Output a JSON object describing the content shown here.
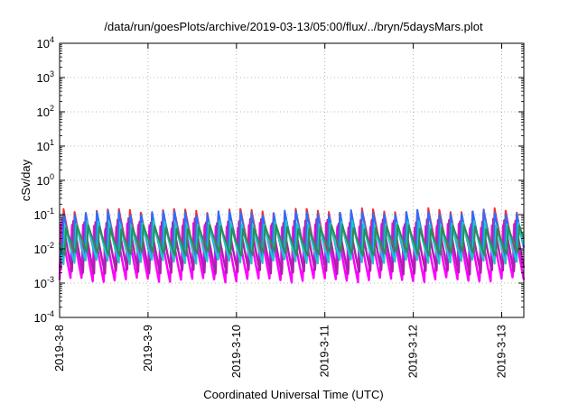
{
  "chart_data": {
    "type": "line",
    "title": "/data/run/goesPlots/archive/2019-03-13/05:00/flux/../bryn/5daysMars.plot",
    "xlabel": "Coordinated Universal Time (UTC)",
    "ylabel": "cSv/day",
    "yscale": "log",
    "ylim": [
      0.0001,
      10000
    ],
    "xlim": [
      "2019-03-08T00:00",
      "2019-03-13T06:00"
    ],
    "x_tick_labels": [
      "2019-3-8",
      "2019-3-9",
      "2019-3-10",
      "2019-3-11",
      "2019-3-12",
      "2019-3-13"
    ],
    "x_ticks": [
      "2019-03-08T00:00",
      "2019-03-09T00:00",
      "2019-03-10T00:00",
      "2019-03-11T00:00",
      "2019-03-12T00:00",
      "2019-03-13T00:00"
    ],
    "y_ticks": [
      {
        "value": 0.0001,
        "base": "10",
        "exp": "-4"
      },
      {
        "value": 0.001,
        "base": "10",
        "exp": "-3"
      },
      {
        "value": 0.01,
        "base": "10",
        "exp": "-2"
      },
      {
        "value": 0.1,
        "base": "10",
        "exp": "-1"
      },
      {
        "value": 1,
        "base": "10",
        "exp": "0"
      },
      {
        "value": 10,
        "base": "10",
        "exp": "1"
      },
      {
        "value": 100,
        "base": "10",
        "exp": "2"
      },
      {
        "value": 1000,
        "base": "10",
        "exp": "3"
      },
      {
        "value": 10000,
        "base": "10",
        "exp": "4"
      }
    ],
    "grid": true,
    "legend": "none",
    "cycle_hours": 3.0,
    "series": [
      {
        "color": "#ff00ff",
        "phase_hours": 0.0,
        "peak": 0.05,
        "trough": 0.0012
      },
      {
        "color": "#b01eb0",
        "phase_hours": 0.35,
        "peak": 0.07,
        "trough": 0.002
      },
      {
        "color": "#ff2a2a",
        "phase_hours": 0.7,
        "peak": 0.14,
        "trough": 0.006
      },
      {
        "color": "#2a6fff",
        "phase_hours": 0.75,
        "peak": 0.12,
        "trough": 0.005
      },
      {
        "color": "#1fc6c6",
        "phase_hours": 1.1,
        "peak": 0.06,
        "trough": 0.004
      },
      {
        "color": "#2e8b57",
        "phase_hours": 1.4,
        "peak": 0.045,
        "trough": 0.007
      }
    ]
  }
}
